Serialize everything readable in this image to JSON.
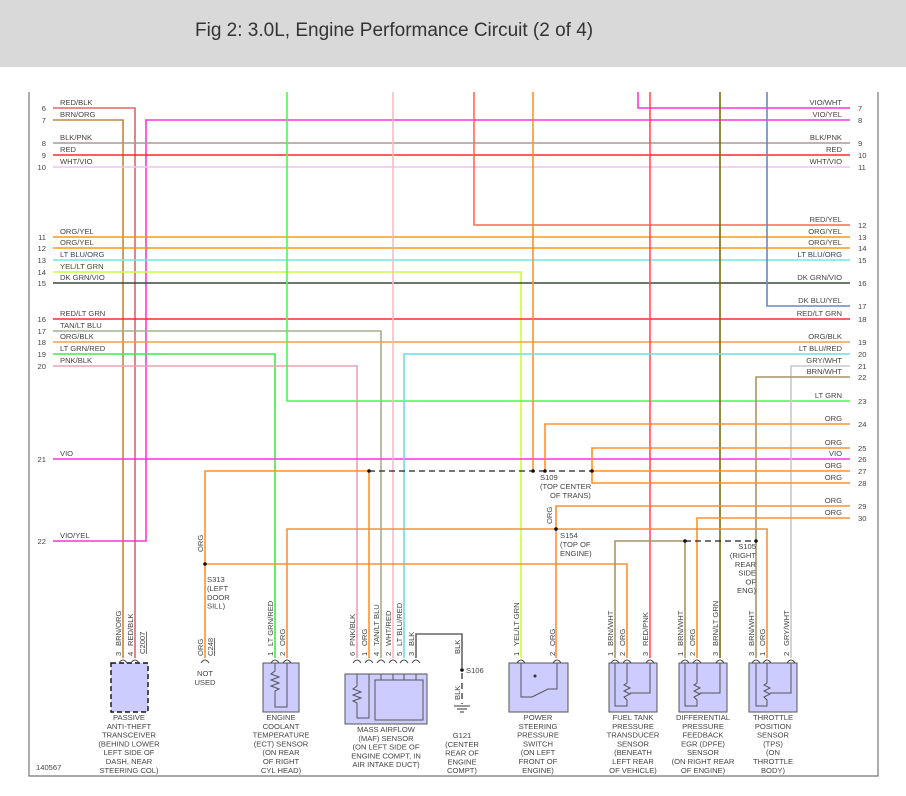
{
  "title": "Fig 2: 3.0L, Engine Performance Circuit (2 of 4)",
  "figure_id": "140567",
  "wire_colors": {
    "RED/BLK": "#e06666",
    "BRN/ORG": "#c0893a",
    "VIO/YEL": "#ff33dd",
    "VIO/WHT": "#ff33dd",
    "BLK/PNK": "#a89898",
    "RED": "#ff2a2a",
    "WHT/VIO": "#f2c4f2",
    "ORG/YEL": "#ff9a10",
    "LT BLU/ORG": "#6ee8e0",
    "YEL/LT GRN": "#c8ff40",
    "DK GRN/VIO": "#3c4a3c",
    "RED/LT GRN": "#ff2a2a",
    "TAN/LT BLU": "#a3b08c",
    "ORG/BLK": "#f0a050",
    "LT GRN/RED": "#44e844",
    "PNK/BLK": "#e8a4b4",
    "VIO": "#ff33dd",
    "LT GRN": "#44ff44",
    "WHT/RED": "#f4bcc4",
    "RED/YEL": "#ff6a4a",
    "ORG": "#ff9030",
    "RED/PNK": "#ff5050",
    "BRN/LT GRN": "#7a6a10",
    "DK BLU/YEL": "#6a86c4",
    "GRY/WHT": "#c8c8c8",
    "BRN/WHT": "#a89468",
    "LT BLU/RED": "#66e0e8",
    "BLK": "#666666"
  },
  "left_rows": [
    {
      "num": "6",
      "label": "RED/BLK"
    },
    {
      "num": "7",
      "label": "BRN/ORG"
    },
    {
      "num": "8",
      "label": "BLK/PNK"
    },
    {
      "num": "9",
      "label": "RED"
    },
    {
      "num": "10",
      "label": "WHT/VIO"
    },
    {
      "num": "11",
      "label": "ORG/YEL"
    },
    {
      "num": "12",
      "label": "ORG/YEL"
    },
    {
      "num": "13",
      "label": "LT BLU/ORG"
    },
    {
      "num": "14",
      "label": "YEL/LT GRN"
    },
    {
      "num": "15",
      "label": "DK GRN/VIO"
    },
    {
      "num": "16",
      "label": "RED/LT GRN"
    },
    {
      "num": "17",
      "label": "TAN/LT BLU"
    },
    {
      "num": "18",
      "label": "ORG/BLK"
    },
    {
      "num": "19",
      "label": "LT GRN/RED"
    },
    {
      "num": "20",
      "label": "PNK/BLK"
    },
    {
      "num": "21",
      "label": "VIO"
    },
    {
      "num": "22",
      "label": "VIO/YEL"
    }
  ],
  "right_rows": [
    {
      "num": "7",
      "label": "VIO/WHT"
    },
    {
      "num": "8",
      "label": "VIO/YEL"
    },
    {
      "num": "9",
      "label": "BLK/PNK"
    },
    {
      "num": "10",
      "label": "RED"
    },
    {
      "num": "11",
      "label": "WHT/VIO"
    },
    {
      "num": "12",
      "label": "RED/YEL"
    },
    {
      "num": "13",
      "label": "ORG/YEL"
    },
    {
      "num": "14",
      "label": "ORG/YEL"
    },
    {
      "num": "15",
      "label": "LT BLU/ORG"
    },
    {
      "num": "16",
      "label": "DK GRN/VIO"
    },
    {
      "num": "17",
      "label": "DK BLU/YEL"
    },
    {
      "num": "18",
      "label": "RED/LT GRN"
    },
    {
      "num": "19",
      "label": "ORG/BLK"
    },
    {
      "num": "20",
      "label": "LT BLU/RED"
    },
    {
      "num": "21",
      "label": "GRY/WHT"
    },
    {
      "num": "22",
      "label": "BRN/WHT"
    },
    {
      "num": "23",
      "label": "LT GRN"
    },
    {
      "num": "24",
      "label": "ORG"
    },
    {
      "num": "25",
      "label": "ORG"
    },
    {
      "num": "26",
      "label": "VIO"
    },
    {
      "num": "27",
      "label": "ORG"
    },
    {
      "num": "28",
      "label": "ORG"
    },
    {
      "num": "29",
      "label": "ORG"
    },
    {
      "num": "30",
      "label": "ORG"
    }
  ],
  "splices": [
    {
      "id": "S109",
      "lines": [
        "(TOP CENTER",
        "OF TRANS)"
      ]
    },
    {
      "id": "S154",
      "lines": [
        "(TOP OF",
        "ENGINE)"
      ]
    },
    {
      "id": "S105",
      "lines": [
        "(RIGHT",
        "REAR",
        "SIDE",
        "OF",
        "ENG)"
      ]
    },
    {
      "id": "S313",
      "lines": [
        "(LEFT",
        "DOOR",
        "SILL)"
      ]
    },
    {
      "id": "S106",
      "lines": []
    }
  ],
  "wire_tags": [
    {
      "text": "ORG"
    },
    {
      "text": "ORG"
    },
    {
      "text": "BLK"
    },
    {
      "text": "BLK"
    }
  ],
  "components": [
    {
      "name": "passive-anti-theft-transceiver",
      "connector": "C2007",
      "pins": [
        {
          "num": "3",
          "label": "BRN/ORG"
        },
        {
          "num": "4",
          "label": "RED/BLK"
        }
      ],
      "lines": [
        "PASSIVE",
        "ANTI-THEFT",
        "TRANSCEIVER",
        "(BEHIND LOWER",
        "LEFT SIDE OF",
        "DASH, NEAR",
        "STEERING COL)"
      ]
    },
    {
      "name": "c248-not-used",
      "connector": "C248",
      "pins": [
        {
          "num": "",
          "label": "ORG"
        }
      ],
      "lines": [
        "NOT",
        "USED"
      ]
    },
    {
      "name": "ect-sensor",
      "pins": [
        {
          "num": "1",
          "label": "LT GRN/RED"
        },
        {
          "num": "2",
          "label": "ORG"
        }
      ],
      "lines": [
        "ENGINE",
        "COOLANT",
        "TEMPERATURE",
        "(ECT) SENSOR",
        "(ON REAR",
        "OF RIGHT",
        "CYL HEAD)"
      ]
    },
    {
      "name": "maf-sensor",
      "pins": [
        {
          "num": "6",
          "label": "PNK/BLK"
        },
        {
          "num": "1",
          "label": "ORG"
        },
        {
          "num": "4",
          "label": "TAN/LT BLU"
        },
        {
          "num": "2",
          "label": "WHT/RED"
        },
        {
          "num": "5",
          "label": "LT BLU/RED"
        },
        {
          "num": "3",
          "label": "BLK"
        }
      ],
      "lines": [
        "MASS AIRFLOW",
        "(MAF) SENSOR",
        "(ON LEFT SIDE OF",
        "ENGINE COMPT, IN",
        "AIR INTAKE DUCT)"
      ]
    },
    {
      "name": "g121-ground",
      "pins": [],
      "lines": [
        "G121",
        "(CENTER",
        "REAR OF",
        "ENGINE",
        "COMPT)"
      ]
    },
    {
      "name": "power-steering-pressure-switch",
      "pins": [
        {
          "num": "1",
          "label": "YEL/LT GRN"
        },
        {
          "num": "2",
          "label": "ORG"
        }
      ],
      "lines": [
        "POWER",
        "STEERING",
        "PRESSURE",
        "SWITCH",
        "(ON LEFT",
        "FRONT OF",
        "ENGINE)"
      ]
    },
    {
      "name": "fuel-tank-pressure-transducer",
      "pins": [
        {
          "num": "1",
          "label": "BRN/WHT"
        },
        {
          "num": "2",
          "label": "ORG"
        },
        {
          "num": "3",
          "label": "RED/PNK"
        }
      ],
      "lines": [
        "FUEL TANK",
        "PRESSURE",
        "TRANSDUCER",
        "SENSOR",
        "(BENEATH",
        "LEFT REAR",
        "OF VEHICLE)"
      ]
    },
    {
      "name": "dpfe-sensor",
      "pins": [
        {
          "num": "1",
          "label": "BRN/WHT"
        },
        {
          "num": "2",
          "label": "ORG"
        },
        {
          "num": "3",
          "label": "BRN/LT GRN"
        }
      ],
      "lines": [
        "DIFFERENTIAL",
        "PRESSURE",
        "FEEDBACK",
        "EGR (DPFE)",
        "SENSOR",
        "(ON RIGHT REAR",
        "OF ENGINE)"
      ]
    },
    {
      "name": "throttle-position-sensor",
      "pins": [
        {
          "num": "3",
          "label": "BRN/WHT"
        },
        {
          "num": "1",
          "label": "ORG"
        },
        {
          "num": "2",
          "label": "GRY/WHT"
        }
      ],
      "lines": [
        "THROTTLE",
        "POSITION",
        "SENSOR",
        "(TPS)",
        "(ON",
        "THROTTLE",
        "BODY)"
      ]
    }
  ]
}
